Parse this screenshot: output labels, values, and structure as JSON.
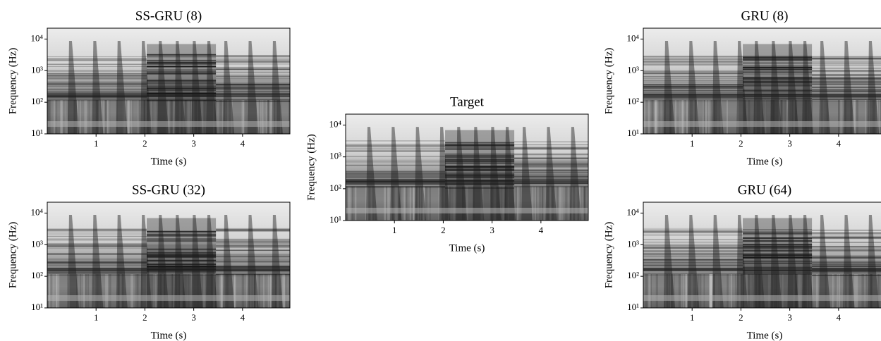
{
  "chart_data": [
    {
      "type": "spectrogram",
      "title": "SS-GRU (8)",
      "xlabel": "Time (s)",
      "ylabel": "Frequency (Hz)",
      "xlim": [
        0,
        4.97
      ],
      "xticks": [
        1,
        2,
        3,
        4
      ],
      "ylim": [
        10,
        22050
      ],
      "yscale": "log",
      "yticks": [
        {
          "value": 10,
          "label": "10¹"
        },
        {
          "value": 100,
          "label": "10²"
        },
        {
          "value": 1000,
          "label": "10³"
        },
        {
          "value": 10000,
          "label": "10⁴"
        }
      ]
    },
    {
      "type": "spectrogram",
      "title": "SS-GRU (32)",
      "xlabel": "Time (s)",
      "ylabel": "Frequency (Hz)",
      "xlim": [
        0,
        4.97
      ],
      "xticks": [
        1,
        2,
        3,
        4
      ],
      "ylim": [
        10,
        22050
      ],
      "yscale": "log",
      "yticks": [
        {
          "value": 10,
          "label": "10¹"
        },
        {
          "value": 100,
          "label": "10²"
        },
        {
          "value": 1000,
          "label": "10³"
        },
        {
          "value": 10000,
          "label": "10⁴"
        }
      ]
    },
    {
      "type": "spectrogram",
      "title": "Target",
      "xlabel": "Time (s)",
      "ylabel": "Frequency (Hz)",
      "xlim": [
        0,
        4.97
      ],
      "xticks": [
        1,
        2,
        3,
        4
      ],
      "ylim": [
        10,
        22050
      ],
      "yscale": "log",
      "yticks": [
        {
          "value": 10,
          "label": "10¹"
        },
        {
          "value": 100,
          "label": "10²"
        },
        {
          "value": 1000,
          "label": "10³"
        },
        {
          "value": 10000,
          "label": "10⁴"
        }
      ]
    },
    {
      "type": "spectrogram",
      "title": "GRU (8)",
      "xlabel": "Time (s)",
      "ylabel": "Frequency (Hz)",
      "xlim": [
        0,
        4.97
      ],
      "xticks": [
        1,
        2,
        3,
        4
      ],
      "ylim": [
        10,
        22050
      ],
      "yscale": "log",
      "yticks": [
        {
          "value": 10,
          "label": "10¹"
        },
        {
          "value": 100,
          "label": "10²"
        },
        {
          "value": 1000,
          "label": "10³"
        },
        {
          "value": 10000,
          "label": "10⁴"
        }
      ]
    },
    {
      "type": "spectrogram",
      "title": "GRU (64)",
      "xlabel": "Time (s)",
      "ylabel": "Frequency (Hz)",
      "xlim": [
        0,
        4.97
      ],
      "xticks": [
        1,
        2,
        3,
        4
      ],
      "ylim": [
        10,
        22050
      ],
      "yscale": "log",
      "yticks": [
        {
          "value": 10,
          "label": "10¹"
        },
        {
          "value": 100,
          "label": "10²"
        },
        {
          "value": 1000,
          "label": "10³"
        },
        {
          "value": 10000,
          "label": "10⁴"
        }
      ]
    }
  ]
}
